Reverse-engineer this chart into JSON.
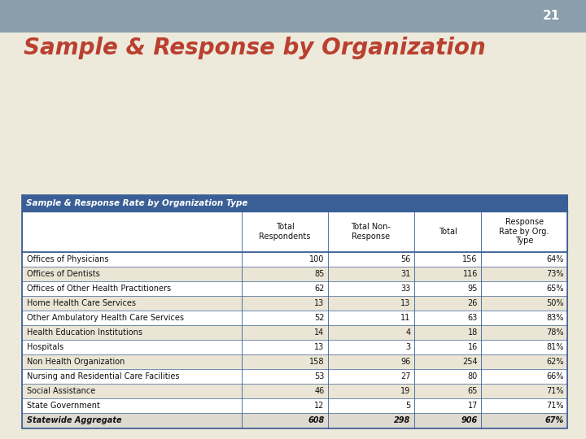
{
  "slide_number": "21",
  "title": "Sample & Response by Organization",
  "table_header": "Sample & Response Rate by Organization Type",
  "col_headers": [
    "",
    "Total\nRespondents",
    "Total Non-\nResponse",
    "Total",
    "Response\nRate by Org.\nType"
  ],
  "rows": [
    [
      "Offices of Physicians",
      "100",
      "56",
      "156",
      "64%"
    ],
    [
      "Offices of Dentists",
      "85",
      "31",
      "116",
      "73%"
    ],
    [
      "Offices of Other Health Practitioners",
      "62",
      "33",
      "95",
      "65%"
    ],
    [
      "Home Health Care Services",
      "13",
      "13",
      "26",
      "50%"
    ],
    [
      "Other Ambulatory Health Care Services",
      "52",
      "11",
      "63",
      "83%"
    ],
    [
      "Health Education Institutions",
      "14",
      "4",
      "18",
      "78%"
    ],
    [
      "Hospitals",
      "13",
      "3",
      "16",
      "81%"
    ],
    [
      "Non Health Organization",
      "158",
      "96",
      "254",
      "62%"
    ],
    [
      "Nursing and Residential Care Facilities",
      "53",
      "27",
      "80",
      "66%"
    ],
    [
      "Social Assistance",
      "46",
      "19",
      "65",
      "71%"
    ],
    [
      "State Government",
      "12",
      "5",
      "17",
      "71%"
    ],
    [
      "Statewide Aggregate",
      "608",
      "298",
      "906",
      "67%"
    ]
  ],
  "bg_color": "#eeeadb",
  "header_bar_color": "#3a5f96",
  "header_bar_text_color": "#ffffff",
  "title_color": "#b94030",
  "top_bar_color": "#8a9eab",
  "slide_num_color": "#ffffff",
  "table_border_color": "#3a5f96",
  "row_colors": [
    "#ffffff",
    "#eae5d5"
  ],
  "last_row_color": "#dedad0",
  "col_header_bg": "#ffffff",
  "cell_text_color": "#000000",
  "font_family": "DejaVu Sans"
}
